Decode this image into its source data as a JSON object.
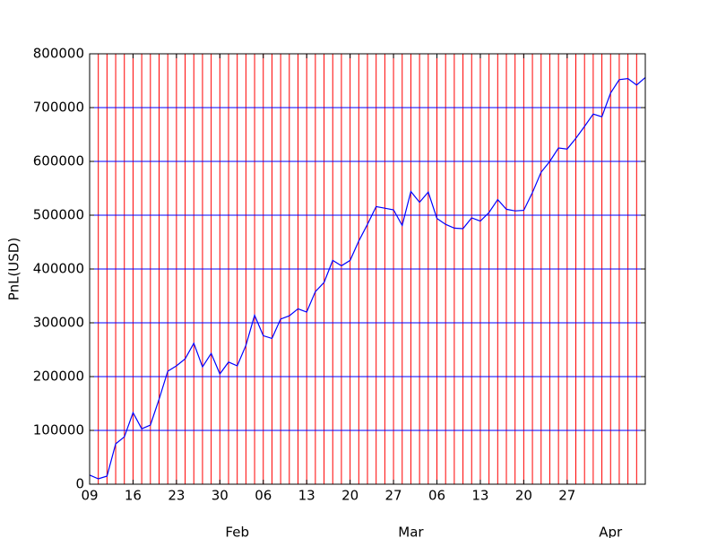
{
  "chart_data": {
    "type": "line",
    "ylabel": "PnL(USD)",
    "categories": [
      "09",
      null,
      null,
      null,
      null,
      "16",
      null,
      null,
      null,
      null,
      "23",
      null,
      null,
      null,
      null,
      "30",
      null,
      null,
      null,
      null,
      "06",
      null,
      null,
      null,
      null,
      "13",
      null,
      null,
      null,
      null,
      "20",
      null,
      null,
      null,
      null,
      "27",
      null,
      null,
      null,
      null,
      "06",
      null,
      null,
      null,
      null,
      "13",
      null,
      null,
      null,
      null,
      "20",
      null,
      null,
      null,
      null,
      "27",
      null,
      null,
      null,
      null,
      null,
      null,
      null,
      null,
      null
    ],
    "category_months": [
      null,
      null,
      null,
      null,
      null,
      null,
      null,
      null,
      null,
      null,
      null,
      null,
      null,
      null,
      null,
      null,
      null,
      "Feb",
      null,
      null,
      null,
      null,
      null,
      null,
      null,
      null,
      null,
      null,
      null,
      null,
      null,
      null,
      null,
      null,
      null,
      null,
      null,
      "Mar",
      null,
      null,
      null,
      null,
      null,
      null,
      null,
      null,
      null,
      null,
      null,
      null,
      null,
      null,
      null,
      null,
      null,
      null,
      null,
      null,
      null,
      null,
      "Apr",
      null,
      null,
      null,
      null
    ],
    "series": [
      {
        "name": "PnL",
        "color": "#0000ff",
        "values": [
          17000,
          10000,
          15000,
          75000,
          88000,
          133000,
          103000,
          110000,
          158000,
          210000,
          220000,
          233000,
          262000,
          218000,
          243000,
          205000,
          227000,
          220000,
          258000,
          314000,
          276000,
          271000,
          307000,
          313000,
          326000,
          320000,
          358000,
          375000,
          416000,
          406000,
          416000,
          452000,
          483000,
          516000,
          513000,
          510000,
          481000,
          544000,
          524000,
          543000,
          494000,
          483000,
          476000,
          475000,
          495000,
          489000,
          505000,
          529000,
          511000,
          508000,
          509000,
          542000,
          580000,
          600000,
          625000,
          623000,
          643000,
          665000,
          688000,
          683000,
          727000,
          752000,
          754000,
          742000,
          756000
        ]
      }
    ],
    "ylim": [
      0,
      800000
    ],
    "yticks": [
      0,
      100000,
      200000,
      300000,
      400000,
      500000,
      600000,
      700000,
      800000
    ],
    "grid": true,
    "ygrid_color": "#0000ff",
    "xgrid_color": "#ff0000"
  }
}
